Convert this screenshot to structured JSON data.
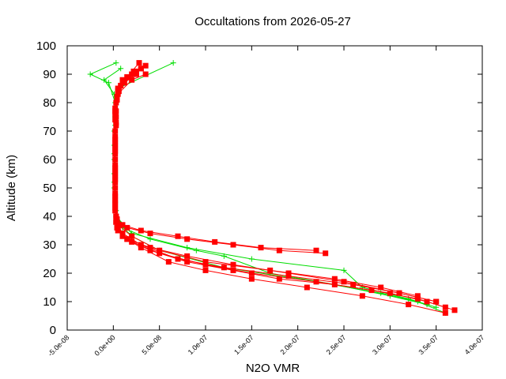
{
  "chart_data": {
    "type": "scatter",
    "title": "Occultations from 2026-05-27",
    "xlabel": "N2O VMR",
    "ylabel": "Altitude (km)",
    "xlim": [
      -5e-08,
      4e-07
    ],
    "ylim": [
      0,
      100
    ],
    "xticks": [
      "-5.0e-08",
      "0.0e+00",
      "5.0e-08",
      "1.0e-07",
      "1.5e-07",
      "2.0e-07",
      "2.5e-07",
      "3.0e-07",
      "3.5e-07",
      "4.0e-07"
    ],
    "xtick_values": [
      -5e-08,
      0,
      5e-08,
      1e-07,
      1.5e-07,
      2e-07,
      2.5e-07,
      3e-07,
      3.5e-07,
      4e-07
    ],
    "yticks": [
      "0",
      "10",
      "20",
      "30",
      "40",
      "50",
      "60",
      "70",
      "80",
      "90",
      "100"
    ],
    "ytick_values": [
      0,
      10,
      20,
      30,
      40,
      50,
      60,
      70,
      80,
      90,
      100
    ],
    "grid": false,
    "legend": "none",
    "series": [
      {
        "color": "#00dd00",
        "marker": "plus",
        "profiles": [
          [
            [
              3.6e-07,
              6
            ],
            [
              3.3e-07,
              10
            ],
            [
              2.9e-07,
              13
            ],
            [
              2.2e-07,
              17
            ],
            [
              1.2e-07,
              22
            ],
            [
              5e-08,
              28
            ],
            [
              2e-08,
              33
            ],
            [
              5e-09,
              38
            ],
            [
              2e-09,
              45
            ],
            [
              1e-09,
              55
            ],
            [
              1e-09,
              65
            ],
            [
              2e-09,
              75
            ],
            [
              5e-09,
              85
            ],
            [
              6.5e-08,
              94
            ]
          ],
          [
            [
              3.5e-07,
              8
            ],
            [
              3.2e-07,
              11
            ],
            [
              2.7e-07,
              15
            ],
            [
              2.5e-07,
              21
            ],
            [
              1.5e-07,
              25
            ],
            [
              8e-08,
              29
            ],
            [
              2e-08,
              34
            ],
            [
              3e-09,
              40
            ],
            [
              1e-09,
              50
            ],
            [
              1e-09,
              60
            ],
            [
              1e-09,
              70
            ],
            [
              2e-09,
              80
            ],
            [
              -5e-09,
              87
            ],
            [
              -2.5e-08,
              90
            ],
            [
              3e-09,
              94
            ]
          ],
          [
            [
              3.4e-07,
              9
            ],
            [
              3e-07,
              12
            ],
            [
              2.4e-07,
              16
            ],
            [
              1.7e-07,
              20
            ],
            [
              1.2e-07,
              26
            ],
            [
              9e-08,
              28
            ],
            [
              4e-08,
              32
            ],
            [
              1e-08,
              36
            ],
            [
              3e-09,
              42
            ],
            [
              1e-09,
              52
            ],
            [
              1e-09,
              62
            ],
            [
              2e-09,
              72
            ],
            [
              1e-09,
              83
            ],
            [
              -1e-08,
              88
            ],
            [
              8e-09,
              92
            ]
          ]
        ]
      },
      {
        "color": "#ff0000",
        "marker": "square",
        "profiles": [
          [
            [
              3.6e-07,
              8
            ],
            [
              3.3e-07,
              11
            ],
            [
              2.8e-07,
              14
            ],
            [
              2.2e-07,
              17
            ],
            [
              1.5e-07,
              20
            ],
            [
              1e-07,
              23
            ],
            [
              5e-08,
              27
            ],
            [
              2e-08,
              31
            ],
            [
              5e-09,
              35
            ],
            [
              3e-09,
              40
            ],
            [
              2e-09,
              50
            ],
            [
              2e-09,
              60
            ],
            [
              2e-09,
              70
            ],
            [
              2e-09,
              78
            ],
            [
              5e-09,
              85
            ],
            [
              2e-08,
              90
            ],
            [
              3.5e-08,
              93
            ]
          ],
          [
            [
              3.5e-07,
              10
            ],
            [
              3.1e-07,
              13
            ],
            [
              2.6e-07,
              16
            ],
            [
              1.9e-07,
              19
            ],
            [
              1.2e-07,
              22
            ],
            [
              7e-08,
              25
            ],
            [
              3e-08,
              30
            ],
            [
              1e-08,
              34
            ],
            [
              3e-09,
              38
            ],
            [
              2e-09,
              45
            ],
            [
              2e-09,
              55
            ],
            [
              2e-09,
              65
            ],
            [
              3e-09,
              75
            ],
            [
              4e-09,
              82
            ],
            [
              1e-08,
              88
            ],
            [
              2.5e-08,
              91
            ]
          ],
          [
            [
              3.7e-07,
              7
            ],
            [
              3.4e-07,
              10
            ],
            [
              3e-07,
              13
            ],
            [
              2.4e-07,
              16
            ],
            [
              1.8e-07,
              18
            ],
            [
              1.3e-07,
              21
            ],
            [
              8e-08,
              24
            ],
            [
              4e-08,
              28
            ],
            [
              1.5e-08,
              32
            ],
            [
              5e-09,
              36
            ],
            [
              2e-09,
              42
            ],
            [
              2e-09,
              52
            ],
            [
              2e-09,
              62
            ],
            [
              3e-09,
              72
            ],
            [
              3e-09,
              80
            ],
            [
              8e-09,
              86
            ],
            [
              3e-08,
              92
            ]
          ],
          [
            [
              3.3e-07,
              12
            ],
            [
              2.9e-07,
              15
            ],
            [
              2.4e-07,
              18
            ],
            [
              1.7e-07,
              21
            ],
            [
              1e-07,
              24
            ],
            [
              5e-08,
              28
            ],
            [
              2e-08,
              33
            ],
            [
              5e-09,
              37
            ],
            [
              2e-09,
              44
            ],
            [
              2e-09,
              54
            ],
            [
              2e-09,
              64
            ],
            [
              2e-09,
              74
            ],
            [
              5e-09,
              83
            ],
            [
              2e-08,
              88
            ],
            [
              3.5e-08,
              90
            ]
          ],
          [
            [
              3.6e-07,
              6
            ],
            [
              3.2e-07,
              9
            ],
            [
              2.7e-07,
              12
            ],
            [
              2.1e-07,
              15
            ],
            [
              1.5e-07,
              18
            ],
            [
              1e-07,
              21
            ],
            [
              6e-08,
              24
            ],
            [
              3e-08,
              29
            ],
            [
              1e-08,
              33
            ],
            [
              3e-09,
              38
            ],
            [
              2e-09,
              48
            ],
            [
              2e-09,
              58
            ],
            [
              2e-09,
              68
            ],
            [
              3e-09,
              77
            ],
            [
              6e-09,
              84
            ],
            [
              1.5e-08,
              89
            ],
            [
              2.8e-08,
              94
            ]
          ],
          [
            [
              2.3e-07,
              27
            ],
            [
              1.8e-07,
              28
            ],
            [
              1.3e-07,
              30
            ],
            [
              8e-08,
              32
            ],
            [
              4e-08,
              34
            ],
            [
              1.5e-08,
              36
            ],
            [
              4e-09,
              39
            ],
            [
              2e-09,
              46
            ],
            [
              2e-09,
              56
            ],
            [
              2e-09,
              66
            ],
            [
              2e-09,
              76
            ],
            [
              4e-09,
              82
            ],
            [
              1.2e-08,
              87
            ],
            [
              2.5e-08,
              90
            ]
          ],
          [
            [
              2.2e-07,
              28
            ],
            [
              1.6e-07,
              29
            ],
            [
              1.1e-07,
              31
            ],
            [
              7e-08,
              33
            ],
            [
              3e-08,
              35
            ],
            [
              1e-08,
              37
            ],
            [
              3e-09,
              40
            ],
            [
              2e-09,
              47
            ],
            [
              2e-09,
              57
            ],
            [
              2e-09,
              67
            ],
            [
              2e-09,
              77
            ],
            [
              5e-09,
              84
            ],
            [
              1.5e-08,
              89
            ],
            [
              3e-08,
              92
            ]
          ],
          [
            [
              3.5e-07,
              10
            ],
            [
              3.1e-07,
              13
            ],
            [
              2.5e-07,
              17
            ],
            [
              1.9e-07,
              20
            ],
            [
              1.3e-07,
              23
            ],
            [
              8e-08,
              26
            ],
            [
              4e-08,
              29
            ],
            [
              1.5e-08,
              32
            ],
            [
              4e-09,
              36
            ],
            [
              2e-09,
              43
            ],
            [
              2e-09,
              53
            ],
            [
              2e-09,
              63
            ],
            [
              3e-09,
              73
            ],
            [
              4e-09,
              81
            ],
            [
              1e-08,
              87
            ],
            [
              2.2e-08,
              91
            ]
          ]
        ]
      }
    ]
  }
}
